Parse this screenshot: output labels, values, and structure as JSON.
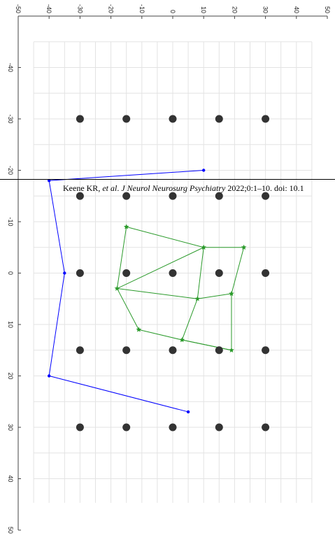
{
  "citation": {
    "authors": "Keene KR, ",
    "etal": "et al",
    "dot": ". ",
    "journal": "J Neurol Neurosurg Psychiatry",
    "rest": " 2022;0:1–10. doi: 10.1"
  },
  "chart_data": {
    "type": "scatter",
    "x_ticks": [
      -50,
      -40,
      -30,
      -20,
      -10,
      0,
      10,
      20,
      30,
      40,
      50
    ],
    "y_ticks": [
      -40,
      -30,
      -20,
      -10,
      0,
      10,
      20,
      30,
      40,
      50
    ],
    "xlim": [
      -50,
      50
    ],
    "ylim": [
      -50,
      50
    ],
    "grid": true,
    "tick_label_rotation": 90,
    "colors": {
      "targets": "#333333",
      "blue": "#0000ff",
      "green": "#2a9a2a",
      "grid": "#e3e3e3"
    },
    "series": [
      {
        "marker": "dot",
        "points": [
          {
            "x": -30,
            "y": -30
          },
          {
            "x": -15,
            "y": -30
          },
          {
            "x": 0,
            "y": -30
          },
          {
            "x": 15,
            "y": -30
          },
          {
            "x": 30,
            "y": -30
          },
          {
            "x": -30,
            "y": -15
          },
          {
            "x": -15,
            "y": -15
          },
          {
            "x": 0,
            "y": -15
          },
          {
            "x": 15,
            "y": -15
          },
          {
            "x": 30,
            "y": -15
          },
          {
            "x": -30,
            "y": 0
          },
          {
            "x": -15,
            "y": 0
          },
          {
            "x": 0,
            "y": 0
          },
          {
            "x": 15,
            "y": 0
          },
          {
            "x": 30,
            "y": 0
          },
          {
            "x": -30,
            "y": 15
          },
          {
            "x": -15,
            "y": 15
          },
          {
            "x": 0,
            "y": 15
          },
          {
            "x": 15,
            "y": 15
          },
          {
            "x": 30,
            "y": 15
          },
          {
            "x": -30,
            "y": 30
          },
          {
            "x": -15,
            "y": 30
          },
          {
            "x": 0,
            "y": 30
          },
          {
            "x": 15,
            "y": 30
          },
          {
            "x": 30,
            "y": 30
          }
        ]
      },
      {
        "marker": "small-dot",
        "line": true,
        "points": [
          {
            "x": 10,
            "y": -20
          },
          {
            "x": -40,
            "y": -18
          },
          {
            "x": -35,
            "y": 0
          },
          {
            "x": -40,
            "y": 20
          },
          {
            "x": 5,
            "y": 27
          }
        ]
      },
      {
        "marker": "star",
        "line": true,
        "points": [
          {
            "x": -15,
            "y": -9
          },
          {
            "x": 10,
            "y": -5
          },
          {
            "x": 23,
            "y": -5
          },
          {
            "x": 19,
            "y": 4
          },
          {
            "x": 19,
            "y": 15
          },
          {
            "x": 3,
            "y": 13
          },
          {
            "x": 8,
            "y": 5
          },
          {
            "x": 10,
            "y": -5
          },
          {
            "x": -18,
            "y": 3
          },
          {
            "x": -15,
            "y": -9
          }
        ],
        "extra_segments": [
          [
            {
              "x": 8,
              "y": 5
            },
            {
              "x": -18,
              "y": 3
            }
          ],
          [
            {
              "x": -18,
              "y": 3
            },
            {
              "x": -11,
              "y": 11
            }
          ],
          [
            {
              "x": -11,
              "y": 11
            },
            {
              "x": 3,
              "y": 13
            }
          ],
          [
            {
              "x": 8,
              "y": 5
            },
            {
              "x": 19,
              "y": 4
            }
          ],
          [
            {
              "x": 3,
              "y": 13
            },
            {
              "x": 19,
              "y": 15
            }
          ]
        ]
      }
    ]
  }
}
